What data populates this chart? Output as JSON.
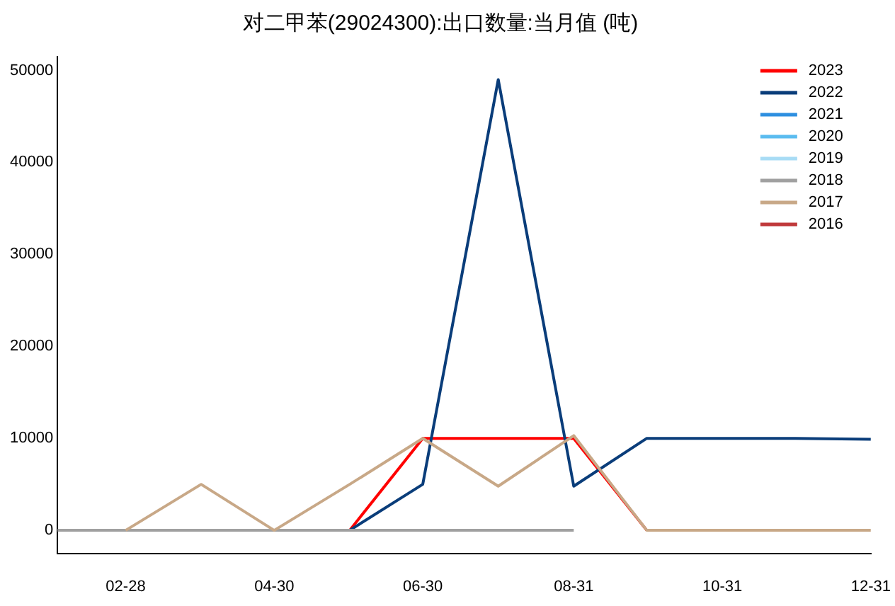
{
  "chart_data": {
    "type": "line",
    "title": "对二甲苯(29024300):出口数量:当月值 (吨)",
    "x": [
      "--01-31",
      "--02-28",
      "--03-31",
      "--04-30",
      "--05-31",
      "--06-30",
      "--07-31",
      "--08-31",
      "--09-30",
      "--10-31",
      "--11-30",
      "--12-31"
    ],
    "xlim": [
      "--01-31",
      "--12-31"
    ],
    "xticks": [
      {
        "value": "--02-28",
        "label": "02-28"
      },
      {
        "value": "--04-30",
        "label": "04-30"
      },
      {
        "value": "--06-30",
        "label": "06-30"
      },
      {
        "value": "--08-31",
        "label": "08-31"
      },
      {
        "value": "--10-31",
        "label": "10-31"
      },
      {
        "value": "--12-31",
        "label": "12-31"
      }
    ],
    "ylim": [
      -2500,
      51500
    ],
    "yticks": [
      0,
      10000,
      20000,
      30000,
      40000,
      50000
    ],
    "grid": false,
    "legend": "top right",
    "marker": "none",
    "line_style": "solid",
    "series": [
      {
        "name": "2023",
        "color": "#ff0000",
        "values": [
          null,
          null,
          null,
          null,
          0,
          10000,
          10000,
          10000,
          0,
          null,
          null,
          null
        ]
      },
      {
        "name": "2022",
        "color": "#0a3d7a",
        "values": [
          null,
          null,
          null,
          null,
          0,
          5000,
          49000,
          4800,
          10000,
          10000,
          10000,
          9900
        ]
      },
      {
        "name": "2021",
        "color": "#2e8fe0",
        "values": [
          null,
          null,
          null,
          null,
          null,
          null,
          null,
          null,
          null,
          null,
          null,
          null
        ]
      },
      {
        "name": "2020",
        "color": "#5bbcf0",
        "values": [
          null,
          null,
          null,
          null,
          null,
          null,
          null,
          null,
          null,
          null,
          null,
          null
        ]
      },
      {
        "name": "2019",
        "color": "#a8dcf5",
        "values": [
          null,
          null,
          null,
          null,
          null,
          null,
          null,
          null,
          null,
          null,
          null,
          null
        ]
      },
      {
        "name": "2018",
        "color": "#a0a0a0",
        "values": [
          0,
          0,
          0,
          0,
          0,
          0,
          0,
          0,
          null,
          null,
          null,
          null
        ]
      },
      {
        "name": "2017",
        "color": "#c8a887",
        "values": [
          null,
          0,
          5000,
          0,
          5000,
          10000,
          4800,
          10300,
          0,
          0,
          0,
          0
        ]
      },
      {
        "name": "2016",
        "color": "#c0393b",
        "values": [
          null,
          null,
          null,
          null,
          null,
          null,
          null,
          null,
          null,
          null,
          null,
          null
        ]
      }
    ]
  }
}
